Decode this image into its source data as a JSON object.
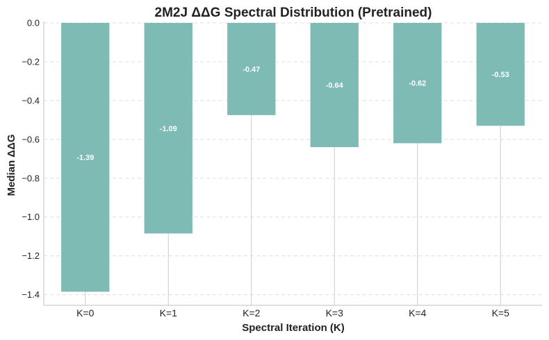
{
  "chart_data": {
    "type": "bar",
    "title": "2M2J ΔΔG Spectral Distribution (Pretrained)",
    "xlabel": "Spectral Iteration (K)",
    "ylabel": "Median ΔΔG",
    "categories": [
      "K=0",
      "K=1",
      "K=2",
      "K=3",
      "K=4",
      "K=5"
    ],
    "values": [
      -1.385,
      -1.085,
      -0.475,
      -0.64,
      -0.62,
      -0.53
    ],
    "data_labels": [
      "-1.39",
      "-1.09",
      "-0.47",
      "-0.64",
      "-0.62",
      "-0.53"
    ],
    "yticks": [
      "0.0",
      "−0.2",
      "−0.4",
      "−0.6",
      "−0.8",
      "−1.0",
      "−1.2",
      "−1.4"
    ],
    "ylim": [
      -1.455,
      0.0
    ],
    "grid": true,
    "bar_color": "#7dbbb4"
  }
}
